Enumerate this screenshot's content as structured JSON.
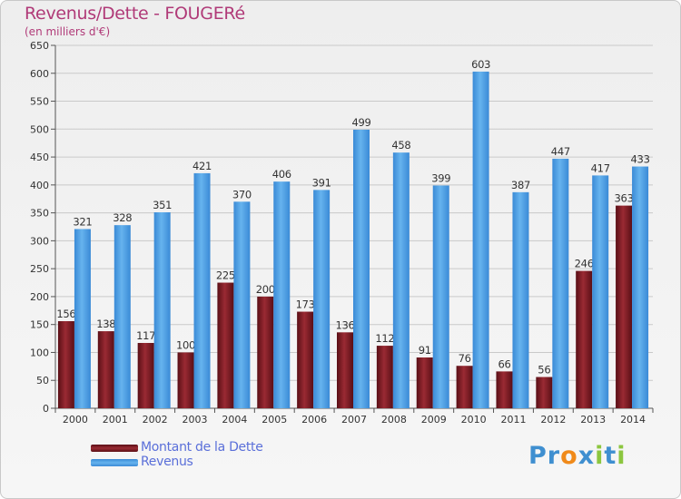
{
  "header": {
    "title": "Revenus/Dette - FOUGERé",
    "subtitle": "(en milliers d'€)"
  },
  "chart_data": {
    "type": "bar",
    "title": "Revenus/Dette - FOUGERé",
    "subtitle": "(en milliers d'€)",
    "xlabel": "",
    "ylabel": "",
    "ylim": [
      0,
      650
    ],
    "yticks": [
      0,
      50,
      100,
      150,
      200,
      250,
      300,
      350,
      400,
      450,
      500,
      550,
      600,
      650
    ],
    "grid": true,
    "legend_position": "bottom-left",
    "categories": [
      "2000",
      "2001",
      "2002",
      "2003",
      "2004",
      "2005",
      "2006",
      "2007",
      "2008",
      "2009",
      "2010",
      "2011",
      "2012",
      "2013",
      "2014"
    ],
    "series": [
      {
        "name": "Montant de la Dette",
        "color": "#7a1a22",
        "values": [
          156,
          138,
          117,
          100,
          225,
          200,
          173,
          136,
          112,
          91,
          76,
          66,
          56,
          246,
          363
        ]
      },
      {
        "name": "Revenus",
        "color": "#4d9fe0",
        "values": [
          321,
          328,
          351,
          421,
          370,
          406,
          391,
          499,
          458,
          399,
          603,
          387,
          447,
          417,
          433
        ]
      }
    ]
  },
  "legend": {
    "items": [
      {
        "label": "Montant de la Dette",
        "color": "#7a1a22"
      },
      {
        "label": "Revenus",
        "color": "#4d9fe0"
      }
    ]
  },
  "brand": {
    "letters": [
      {
        "ch": "P",
        "color": "#3f8fd0"
      },
      {
        "ch": "r",
        "color": "#3f8fd0"
      },
      {
        "ch": "o",
        "color": "#f08a1a"
      },
      {
        "ch": "x",
        "color": "#3f8fd0"
      },
      {
        "ch": "i",
        "color": "#8cc63f"
      },
      {
        "ch": "t",
        "color": "#3f8fd0"
      },
      {
        "ch": "i",
        "color": "#8cc63f"
      }
    ]
  }
}
